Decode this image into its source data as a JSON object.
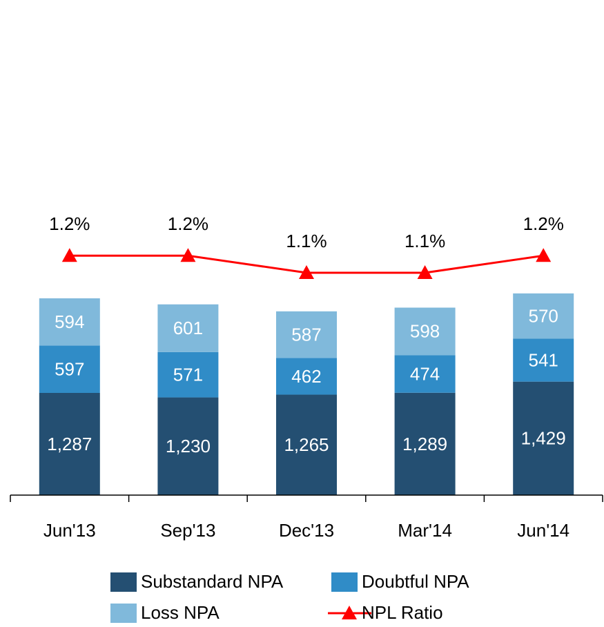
{
  "chart_data": {
    "type": "bar",
    "categories": [
      "Jun'13",
      "Sep'13",
      "Dec'13",
      "Mar'14",
      "Jun'14"
    ],
    "stacked": true,
    "ylim": [
      0,
      5600
    ],
    "y2lim": [
      -0.2,
      2.4
    ],
    "series": [
      {
        "name": "Substandard NPA",
        "color": "#244f72",
        "values": [
          1287,
          1230,
          1265,
          1289,
          1429
        ],
        "value_labels": [
          "1,287",
          "1,230",
          "1,265",
          "1,289",
          "1,429"
        ]
      },
      {
        "name": "Doubtful NPA",
        "color": "#308cc7",
        "values": [
          597,
          571,
          462,
          474,
          541
        ]
      },
      {
        "name": "Loss NPA",
        "color": "#80b9db",
        "values": [
          594,
          601,
          587,
          598,
          570
        ]
      },
      {
        "name": "NPL Ratio",
        "type": "line",
        "axis": "y2",
        "color": "#ff0000",
        "values": [
          1.2,
          1.2,
          1.1,
          1.1,
          1.2
        ],
        "value_labels": [
          "1.2%",
          "1.2%",
          "1.1%",
          "1.1%",
          "1.2%"
        ]
      }
    ]
  }
}
